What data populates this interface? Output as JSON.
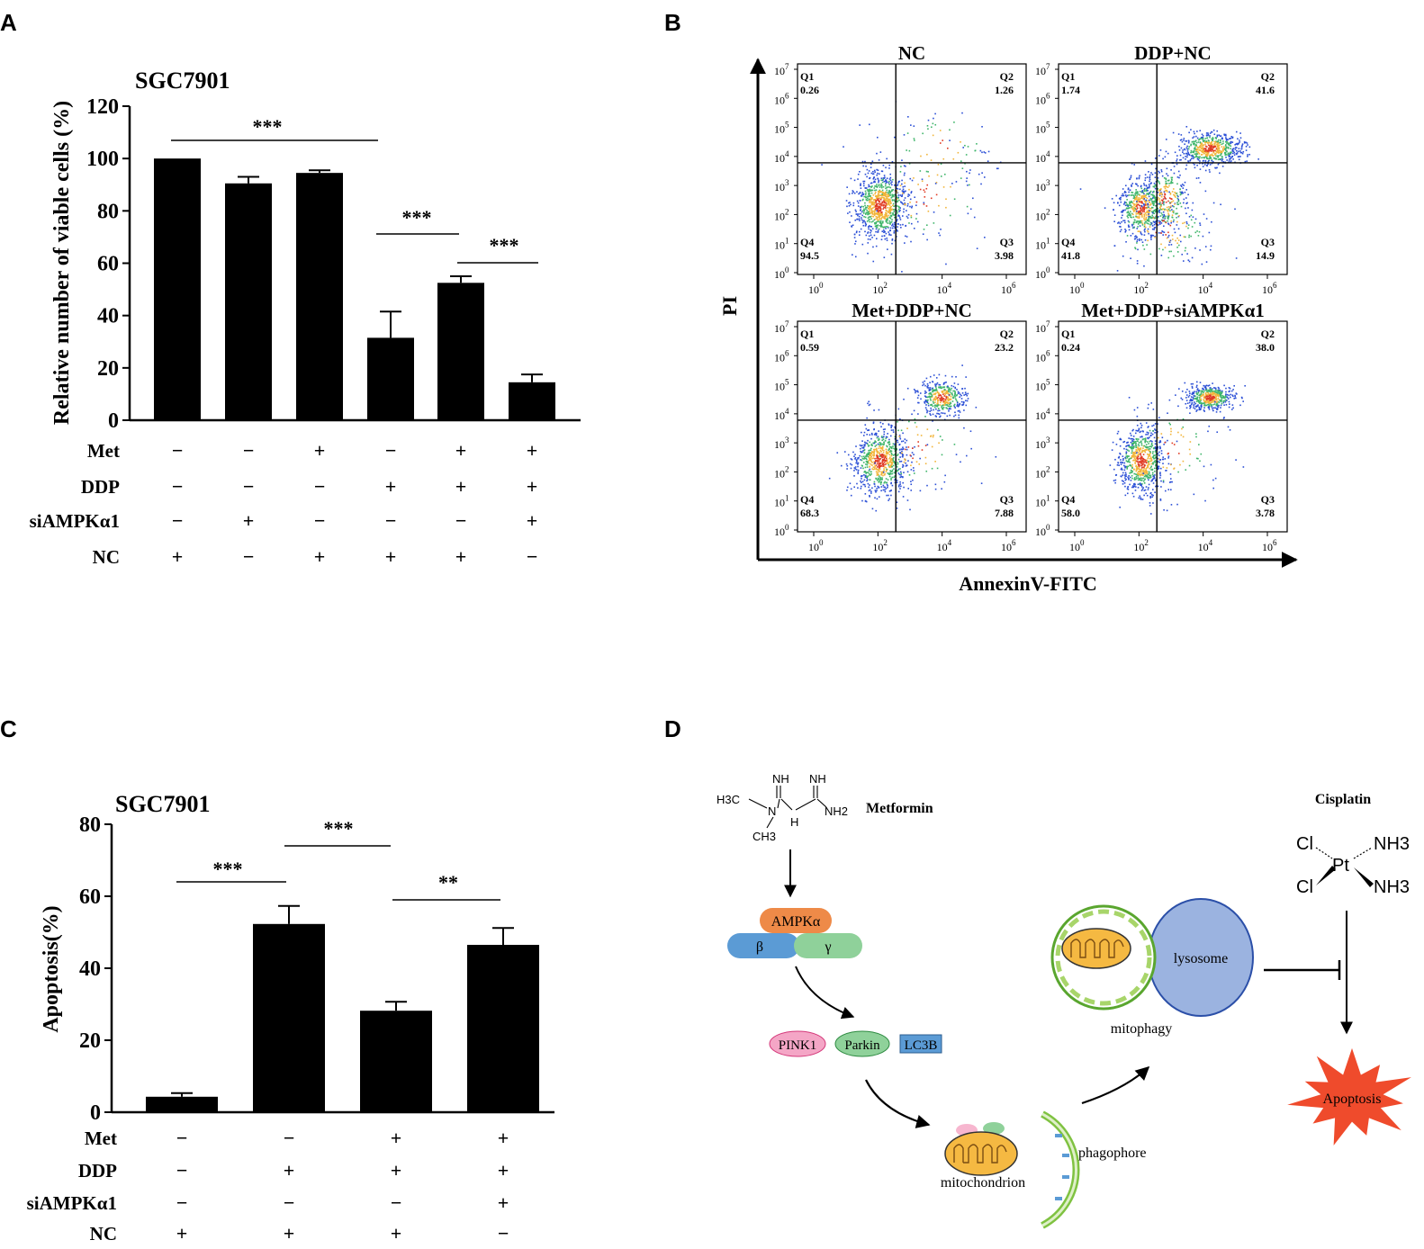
{
  "panels": {
    "a": {
      "letter": "A",
      "title": "SGC7901",
      "ylabel": "Relative number of viable cells (%)",
      "yticks": [
        "0",
        "20",
        "40",
        "60",
        "80",
        "100",
        "120"
      ],
      "ylim": [
        0,
        120
      ],
      "significance": [
        "***",
        "***",
        "***"
      ],
      "conditions": [
        {
          "label": "Met",
          "signs": [
            "−",
            "−",
            "+",
            "−",
            "+",
            "+"
          ]
        },
        {
          "label": "DDP",
          "signs": [
            "−",
            "−",
            "−",
            "+",
            "+",
            "+"
          ]
        },
        {
          "label": "siAMPKα1",
          "signs": [
            "−",
            "+",
            "−",
            "−",
            "−",
            "+"
          ]
        },
        {
          "label": "NC",
          "signs": [
            "+",
            "−",
            "+",
            "+",
            "+",
            "−"
          ]
        }
      ]
    },
    "b": {
      "letter": "B",
      "ylabel": "PI",
      "xlabel": "AnnexinV-FITC",
      "plots": [
        {
          "title": "NC",
          "q1": "0.26",
          "q2": "1.26",
          "q3": "3.98",
          "q4": "94.5"
        },
        {
          "title": "DDP+NC",
          "q1": "1.74",
          "q2": "41.6",
          "q3": "14.9",
          "q4": "41.8"
        },
        {
          "title": "Met+DDP+NC",
          "q1": "0.59",
          "q2": "23.2",
          "q3": "7.88",
          "q4": "68.3"
        },
        {
          "title": "Met+DDP+siAMPKα1",
          "q1": "0.24",
          "q2": "38.0",
          "q3": "3.78",
          "q4": "58.0"
        }
      ],
      "quadrant_labels": [
        "Q1",
        "Q2",
        "Q3",
        "Q4"
      ],
      "x_ticks": [
        "0",
        "2",
        "4",
        "6"
      ],
      "y_ticks": [
        "7",
        "6",
        "5",
        "4",
        "3",
        "2",
        "1",
        "0"
      ],
      "tick_base": "10"
    },
    "c": {
      "letter": "C",
      "title": "SGC7901",
      "ylabel": "Apoptosis(%)",
      "yticks": [
        "0",
        "20",
        "40",
        "60",
        "80"
      ],
      "ylim": [
        0,
        80
      ],
      "significance": [
        "***",
        "***",
        "**"
      ],
      "conditions": [
        {
          "label": "Met",
          "signs": [
            "−",
            "−",
            "+",
            "+"
          ]
        },
        {
          "label": "DDP",
          "signs": [
            "−",
            "+",
            "+",
            "+"
          ]
        },
        {
          "label": "siAMPKα1",
          "signs": [
            "−",
            "−",
            "−",
            "+"
          ]
        },
        {
          "label": "NC",
          "signs": [
            "+",
            "+",
            "+",
            "−"
          ]
        }
      ]
    },
    "d": {
      "letter": "D",
      "metformin": "Metformin",
      "metformin_formula": {
        "h3c": "H3C",
        "ch3": "CH3",
        "nh_left": "NH",
        "nh_right": "NH",
        "h": "H",
        "nh2": "NH2",
        "n": "N"
      },
      "cisplatin": "Cisplatin",
      "cisplatin_formula": {
        "cl1": "Cl",
        "cl2": "Cl",
        "pt": "Pt",
        "nh3_1": "NH3",
        "nh3_2": "NH3"
      },
      "ampk_alpha": "AMPKα",
      "ampk_beta": "β",
      "ampk_gamma": "γ",
      "pink1": "PINK1",
      "parkin": "Parkin",
      "lc3b": "LC3B",
      "mitochondrion": "mitochondrion",
      "phagophore": "phagophore",
      "lysosome": "lysosome",
      "mitophagy": "mitophagy",
      "apoptosis": "Apoptosis"
    }
  },
  "colors": {
    "bar": "#000000",
    "ampk_alpha": "#ee8a48",
    "ampk_beta": "#5b9bd5",
    "ampk_gamma": "#8fd19a",
    "pink1": "#f4a6c6",
    "parkin": "#8fd19a",
    "lc3b": "#5b9bd5",
    "lysosome": "#9bb3e0",
    "mito_fill": "#f5b942",
    "phagophore": "#7fc241",
    "apoptosis": "#ef4b2c"
  },
  "chart_data": [
    {
      "type": "bar",
      "title": "SGC7901",
      "ylabel": "Relative number of viable cells (%)",
      "ylim": [
        0,
        120
      ],
      "categories": [
        "1",
        "2",
        "3",
        "4",
        "5",
        "6"
      ],
      "values": [
        100,
        90.5,
        94.5,
        31.5,
        52.5,
        14.5
      ],
      "errors": [
        0,
        2.5,
        1,
        10,
        2.5,
        3
      ]
    },
    {
      "type": "bar",
      "title": "SGC7901",
      "ylabel": "Apoptosis(%)",
      "ylim": [
        0,
        80
      ],
      "categories": [
        "1",
        "2",
        "3",
        "4"
      ],
      "values": [
        4.3,
        52.3,
        28.2,
        46.5
      ],
      "errors": [
        1,
        5,
        2.5,
        4.7
      ]
    }
  ]
}
